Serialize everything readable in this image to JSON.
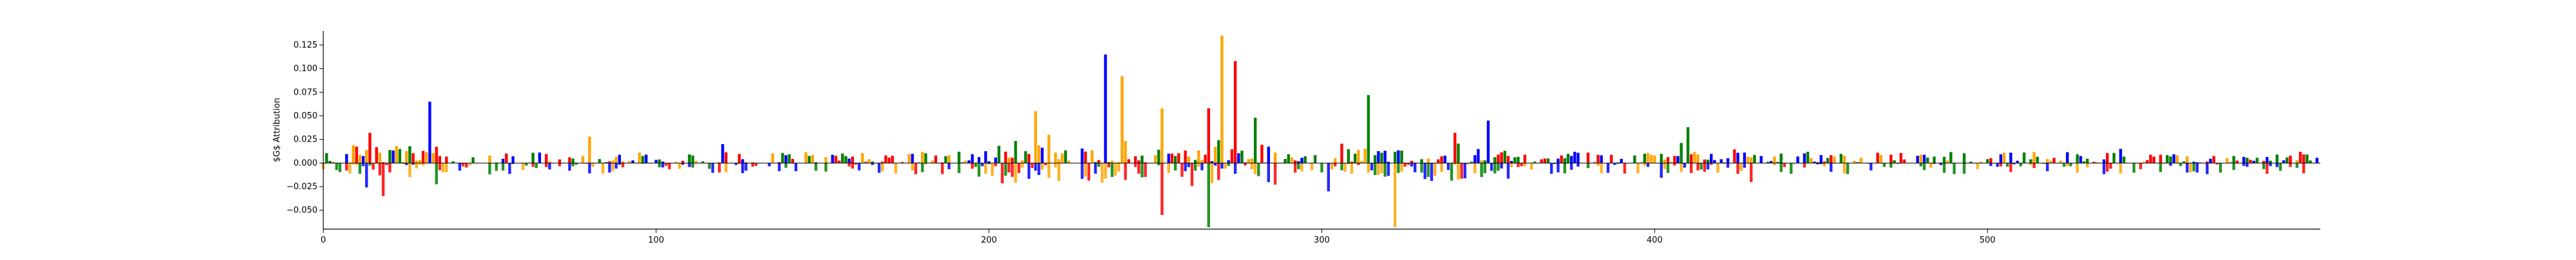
{
  "chart_data": {
    "type": "bar",
    "subtype": "sequence-logo-attribution",
    "title": "",
    "xlabel": "",
    "ylabel": "$G$ Attribution",
    "xlim": [
      0,
      600
    ],
    "ylim": [
      -0.07,
      0.14
    ],
    "x_ticks": [
      0,
      100,
      200,
      300,
      400,
      500
    ],
    "y_ticks": [
      -0.05,
      -0.025,
      0.0,
      0.025,
      0.05,
      0.075,
      0.1,
      0.125
    ],
    "y_tick_labels": [
      "−0.050",
      "−0.025",
      "0.000",
      "0.025",
      "0.050",
      "0.075",
      "0.100",
      "0.125"
    ],
    "x_tick_labels": [
      "0",
      "100",
      "200",
      "300",
      "400",
      "500"
    ],
    "grid": false,
    "bases": {
      "A": "#008000",
      "C": "#0000ff",
      "G": "#ffa500",
      "T": "#ff0000"
    },
    "notable_peaks": [
      {
        "x": 14,
        "base": "T",
        "value": 0.032
      },
      {
        "x": 32,
        "base": "C",
        "value": 0.065
      },
      {
        "x": 80,
        "base": "G",
        "value": 0.028
      },
      {
        "x": 120,
        "base": "C",
        "value": 0.02
      },
      {
        "x": 214,
        "base": "G",
        "value": 0.055
      },
      {
        "x": 218,
        "base": "G",
        "value": 0.03
      },
      {
        "x": 235,
        "base": "C",
        "value": 0.115
      },
      {
        "x": 240,
        "base": "G",
        "value": 0.092
      },
      {
        "x": 252,
        "base": "G",
        "value": 0.058
      },
      {
        "x": 266,
        "base": "T",
        "value": 0.058
      },
      {
        "x": 270,
        "base": "G",
        "value": 0.135
      },
      {
        "x": 274,
        "base": "T",
        "value": 0.108
      },
      {
        "x": 280,
        "base": "A",
        "value": 0.048
      },
      {
        "x": 314,
        "base": "A",
        "value": 0.072
      },
      {
        "x": 340,
        "base": "T",
        "value": 0.032
      },
      {
        "x": 350,
        "base": "C",
        "value": 0.045
      },
      {
        "x": 410,
        "base": "A",
        "value": 0.038
      },
      {
        "x": 540,
        "base": "C",
        "value": 0.015
      }
    ],
    "notable_troughs": [
      {
        "x": 18,
        "base": "T",
        "value": -0.035
      },
      {
        "x": 252,
        "base": "T",
        "value": -0.055
      },
      {
        "x": 266,
        "base": "A",
        "value": -0.068
      },
      {
        "x": 322,
        "base": "G",
        "value": -0.068
      },
      {
        "x": 302,
        "base": "C",
        "value": -0.03
      }
    ]
  }
}
